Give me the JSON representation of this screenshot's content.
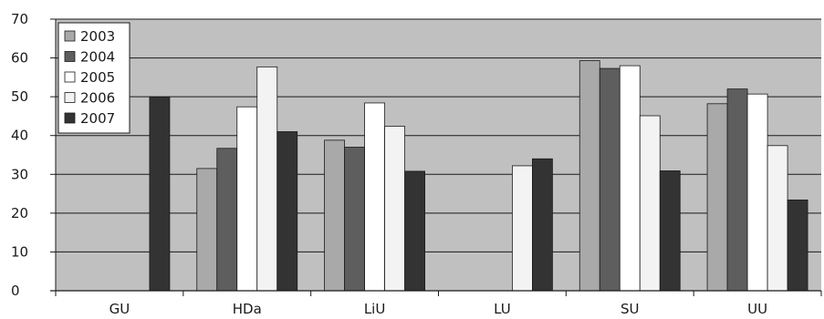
{
  "chart_data": {
    "type": "bar",
    "title": "",
    "xlabel": "",
    "ylabel": "",
    "categories": [
      "GU",
      "HDa",
      "LiU",
      "LU",
      "SU",
      "UU"
    ],
    "series": [
      {
        "name": "2003",
        "color": "#a9a9a9",
        "values": [
          null,
          31.5,
          38.8,
          null,
          59.3,
          48.2
        ]
      },
      {
        "name": "2004",
        "color": "#5e5e5e",
        "values": [
          null,
          36.7,
          37.0,
          null,
          57.3,
          52.0
        ]
      },
      {
        "name": "2005",
        "color": "#ffffff",
        "values": [
          null,
          47.4,
          48.4,
          null,
          58.0,
          50.7
        ]
      },
      {
        "name": "2006",
        "color": "#f3f3f3",
        "values": [
          null,
          57.7,
          42.4,
          32.2,
          45.1,
          37.4
        ]
      },
      {
        "name": "2007",
        "color": "#333333",
        "values": [
          49.9,
          41.0,
          30.8,
          34.0,
          30.9,
          23.4
        ]
      }
    ],
    "ylim": [
      0,
      70
    ],
    "yticks": [
      0,
      10,
      20,
      30,
      40,
      50,
      60,
      70
    ],
    "grid": true,
    "legend_position": "top-left",
    "plot_background": "#c0c0c0"
  }
}
